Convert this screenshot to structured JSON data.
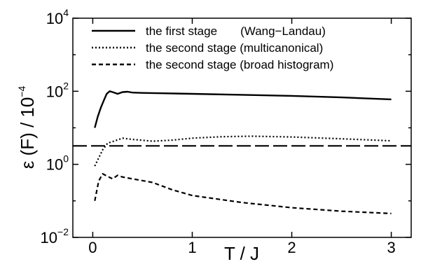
{
  "chart_data": {
    "type": "line",
    "xlabel": "T / J",
    "ylabel": {
      "prefix": "ε (F) / 10",
      "exp": "−4"
    },
    "xlim": [
      -0.2,
      3.2
    ],
    "ylim": [
      0.01,
      10000
    ],
    "y_scale": "log",
    "grid": false,
    "legend_position": "top",
    "x_ticks": [
      0,
      1,
      2,
      3
    ],
    "y_ticks": [
      {
        "value": 0.01,
        "base": "10",
        "exp": "−2"
      },
      {
        "value": 1,
        "base": "10",
        "exp": "0"
      },
      {
        "value": 100,
        "base": "10",
        "exp": "2"
      },
      {
        "value": 10000,
        "base": "10",
        "exp": "4"
      }
    ],
    "reference_line": {
      "y": 3.2,
      "style": "long-dash"
    },
    "series": [
      {
        "name": "the first stage       (Wang−Landau)",
        "style": "solid",
        "x": [
          0.02,
          0.05,
          0.08,
          0.11,
          0.14,
          0.17,
          0.2,
          0.25,
          0.3,
          0.35,
          0.4,
          0.5,
          0.7,
          1.0,
          1.5,
          2.0,
          2.5,
          3.0
        ],
        "y": [
          10,
          20,
          35,
          55,
          85,
          100,
          95,
          85,
          95,
          97,
          92,
          90,
          88,
          85,
          80,
          75,
          68,
          60
        ]
      },
      {
        "name": "the second stage (multicanonical)",
        "style": "dotted",
        "x": [
          0.02,
          0.06,
          0.1,
          0.15,
          0.2,
          0.3,
          0.4,
          0.6,
          0.8,
          1.0,
          1.3,
          1.6,
          2.0,
          2.5,
          3.0
        ],
        "y": [
          0.9,
          1.5,
          2.5,
          3.8,
          4.2,
          5.2,
          4.8,
          4.3,
          4.6,
          5.2,
          5.7,
          5.9,
          5.6,
          5.0,
          4.4
        ]
      },
      {
        "name": "the second stage (broad histogram)",
        "style": "dashed",
        "x": [
          0.02,
          0.06,
          0.1,
          0.14,
          0.2,
          0.25,
          0.3,
          0.4,
          0.6,
          0.8,
          1.0,
          1.5,
          2.0,
          2.5,
          3.0
        ],
        "y": [
          0.1,
          0.35,
          0.55,
          0.48,
          0.4,
          0.5,
          0.45,
          0.4,
          0.32,
          0.2,
          0.14,
          0.09,
          0.065,
          0.052,
          0.045
        ]
      }
    ]
  }
}
